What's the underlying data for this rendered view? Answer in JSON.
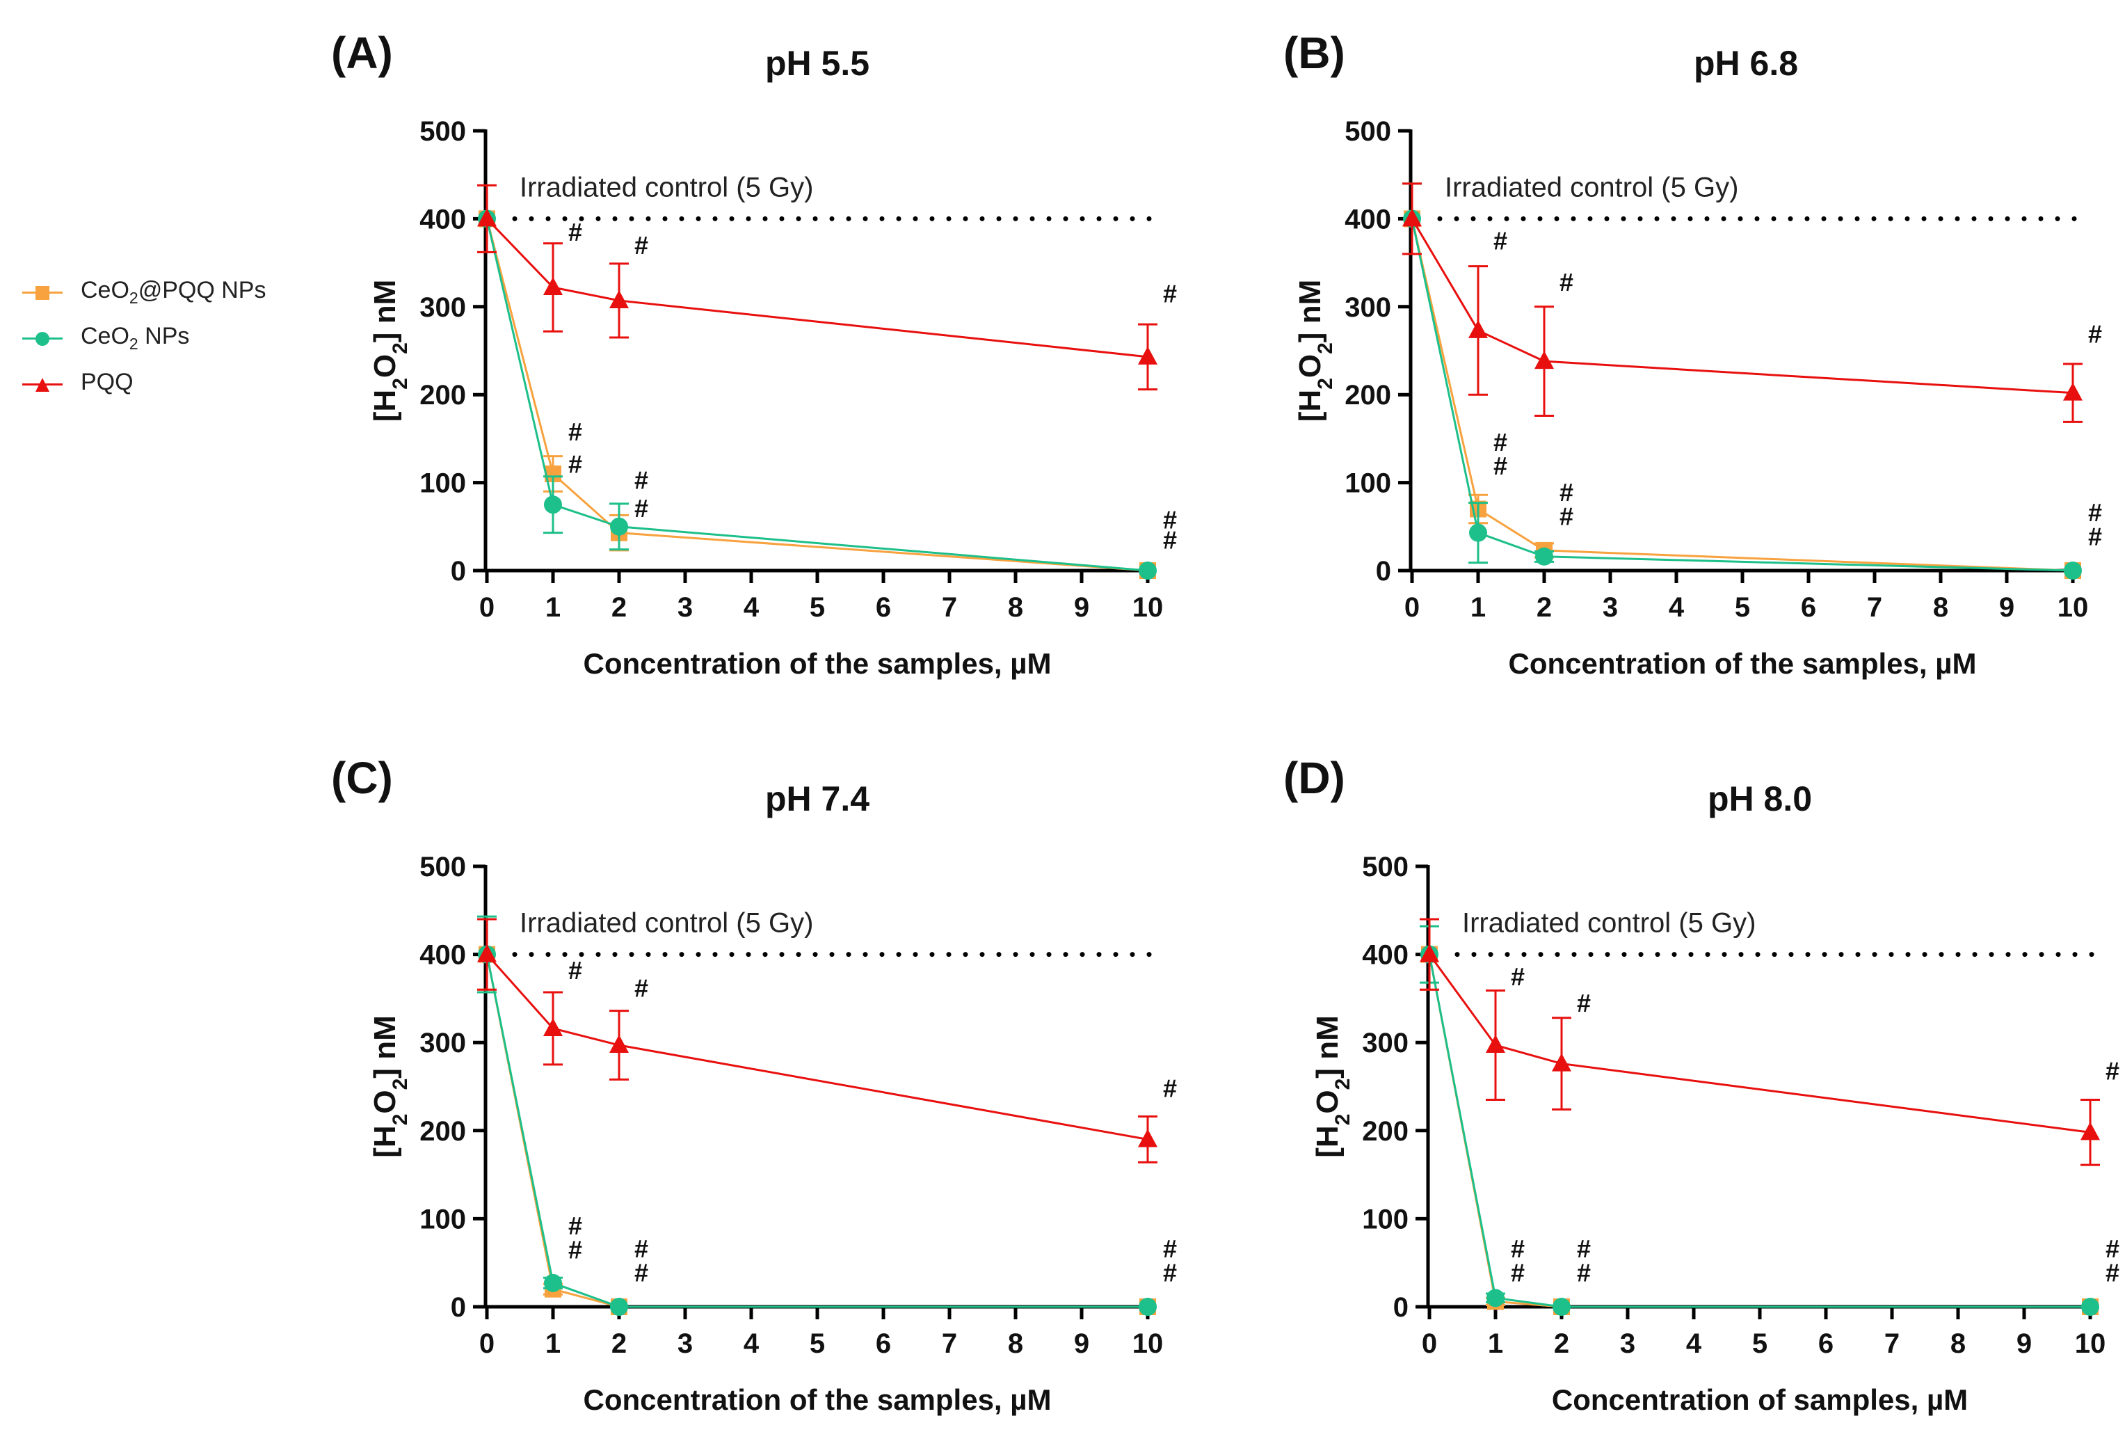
{
  "figure": {
    "legend": [
      {
        "name": "CeO2@PQQ NPs",
        "prefix": "CeO",
        "sub": "2",
        "suffix": "@PQQ NPs",
        "color": "#F7A23E",
        "marker": "square"
      },
      {
        "name": "CeO2 NPs",
        "prefix": "CeO",
        "sub": "2",
        "suffix": " NPs",
        "color": "#1DBF8A",
        "marker": "circle"
      },
      {
        "name": "PQQ",
        "prefix": "PQQ",
        "sub": "",
        "suffix": "",
        "color": "#E8100E",
        "marker": "triangle"
      }
    ],
    "significance_symbol": "#"
  },
  "chart_data": [
    {
      "type": "line",
      "panel_label": "(A)",
      "title": "pH 5.5",
      "xlabel": "Concentration of the samples, µM",
      "ylabel": "[H2O2] nM",
      "ylabel_parts": {
        "pre": "[H",
        "sub1": "2",
        "mid": "O",
        "sub2": "2",
        "post": "] nM"
      },
      "x_ticks": [
        "0",
        "1",
        "2",
        "3",
        "4",
        "5",
        "6",
        "7",
        "8",
        "9",
        "10"
      ],
      "y_ticks": [
        0,
        100,
        200,
        300,
        400,
        500
      ],
      "ylim": [
        0,
        500
      ],
      "reference_line": {
        "y": 400,
        "label": "Irradiated control (5 Gy)"
      },
      "series": [
        {
          "name": "CeO2@PQQ NPs",
          "x": [
            0,
            1,
            2,
            10
          ],
          "values": [
            400,
            110,
            43,
            0
          ],
          "errors": [
            0,
            20,
            20,
            0
          ],
          "color": "#F7A23E",
          "marker": "square"
        },
        {
          "name": "CeO2 NPs",
          "x": [
            0,
            1,
            2,
            10
          ],
          "values": [
            400,
            75,
            50,
            0
          ],
          "errors": [
            0,
            32,
            26,
            0
          ],
          "color": "#1DBF8A",
          "marker": "circle"
        },
        {
          "name": "PQQ",
          "x": [
            0,
            1,
            2,
            10
          ],
          "values": [
            400,
            322,
            307,
            243
          ],
          "errors": [
            38,
            50,
            42,
            37
          ],
          "color": "#E8100E",
          "marker": "triangle"
        }
      ],
      "annotations": [
        {
          "text": "#",
          "x": 1,
          "y": 375
        },
        {
          "text": "#",
          "x": 2,
          "y": 360
        },
        {
          "text": "#",
          "x": 10,
          "y": 305
        },
        {
          "text": "#",
          "x": 1,
          "y": 148
        },
        {
          "text": "#",
          "x": 1,
          "y": 111
        },
        {
          "text": "#",
          "x": 2,
          "y": 93
        },
        {
          "text": "#",
          "x": 2,
          "y": 61
        },
        {
          "text": "#",
          "x": 10,
          "y": 48
        },
        {
          "text": "#",
          "x": 10,
          "y": 25
        }
      ]
    },
    {
      "type": "line",
      "panel_label": "(B)",
      "title": "pH 6.8",
      "xlabel": "Concentration of the samples, µM",
      "ylabel": "[H2O2] nM",
      "ylabel_parts": {
        "pre": "[H",
        "sub1": "2",
        "mid": "O",
        "sub2": "2",
        "post": "] nM"
      },
      "x_ticks": [
        "0",
        "1",
        "2",
        "3",
        "4",
        "5",
        "6",
        "7",
        "8",
        "9",
        "10"
      ],
      "y_ticks": [
        0,
        100,
        200,
        300,
        400,
        500
      ],
      "ylim": [
        0,
        500
      ],
      "reference_line": {
        "y": 400,
        "label": "Irradiated control (5 Gy)"
      },
      "series": [
        {
          "name": "CeO2@PQQ NPs",
          "x": [
            0,
            1,
            2,
            10
          ],
          "values": [
            400,
            70,
            23,
            0
          ],
          "errors": [
            40,
            16,
            8,
            0
          ],
          "color": "#F7A23E",
          "marker": "square"
        },
        {
          "name": "CeO2 NPs",
          "x": [
            0,
            1,
            2,
            10
          ],
          "values": [
            400,
            43,
            16,
            0
          ],
          "errors": [
            40,
            34,
            6,
            0
          ],
          "color": "#1DBF8A",
          "marker": "circle"
        },
        {
          "name": "PQQ",
          "x": [
            0,
            1,
            2,
            10
          ],
          "values": [
            400,
            273,
            238,
            202
          ],
          "errors": [
            40,
            73,
            62,
            33
          ],
          "color": "#E8100E",
          "marker": "triangle"
        }
      ],
      "annotations": [
        {
          "text": "#",
          "x": 1,
          "y": 365
        },
        {
          "text": "#",
          "x": 2,
          "y": 318
        },
        {
          "text": "#",
          "x": 10,
          "y": 259
        },
        {
          "text": "#",
          "x": 1,
          "y": 136
        },
        {
          "text": "#",
          "x": 1,
          "y": 109
        },
        {
          "text": "#",
          "x": 2,
          "y": 79
        },
        {
          "text": "#",
          "x": 2,
          "y": 52
        },
        {
          "text": "#",
          "x": 10,
          "y": 56
        },
        {
          "text": "#",
          "x": 10,
          "y": 29
        }
      ]
    },
    {
      "type": "line",
      "panel_label": "(C)",
      "title": "pH 7.4",
      "xlabel": "Concentration of the samples, µM",
      "ylabel": "[H2O2] nM",
      "ylabel_parts": {
        "pre": "[H",
        "sub1": "2",
        "mid": "O",
        "sub2": "2",
        "post": "] nM"
      },
      "x_ticks": [
        "0",
        "1",
        "2",
        "3",
        "4",
        "5",
        "6",
        "7",
        "8",
        "9",
        "10"
      ],
      "y_ticks": [
        0,
        100,
        200,
        300,
        400,
        500
      ],
      "ylim": [
        0,
        500
      ],
      "reference_line": {
        "y": 400,
        "label": "Irradiated control (5 Gy)"
      },
      "series": [
        {
          "name": "CeO2@PQQ NPs",
          "x": [
            0,
            1,
            2,
            10
          ],
          "values": [
            400,
            20,
            0,
            0
          ],
          "errors": [
            40,
            6,
            0,
            0
          ],
          "color": "#F7A23E",
          "marker": "square"
        },
        {
          "name": "CeO2 NPs",
          "x": [
            0,
            1,
            2,
            10
          ],
          "values": [
            400,
            27,
            0,
            0
          ],
          "errors": [
            43,
            6,
            0,
            0
          ],
          "color": "#1DBF8A",
          "marker": "circle"
        },
        {
          "name": "PQQ",
          "x": [
            0,
            1,
            2,
            10
          ],
          "values": [
            400,
            316,
            297,
            190
          ],
          "errors": [
            40,
            41,
            39,
            26
          ],
          "color": "#E8100E",
          "marker": "triangle"
        }
      ],
      "annotations": [
        {
          "text": "#",
          "x": 1,
          "y": 372
        },
        {
          "text": "#",
          "x": 2,
          "y": 352
        },
        {
          "text": "#",
          "x": 10,
          "y": 238
        },
        {
          "text": "#",
          "x": 1,
          "y": 82
        },
        {
          "text": "#",
          "x": 1,
          "y": 55
        },
        {
          "text": "#",
          "x": 2,
          "y": 56
        },
        {
          "text": "#",
          "x": 2,
          "y": 29
        },
        {
          "text": "#",
          "x": 10,
          "y": 56
        },
        {
          "text": "#",
          "x": 10,
          "y": 29
        }
      ]
    },
    {
      "type": "line",
      "panel_label": "(D)",
      "title": "pH 8.0",
      "xlabel": "Concentration of samples, µM",
      "ylabel": "[H2O2] nM",
      "ylabel_parts": {
        "pre": "[H",
        "sub1": "2",
        "mid": "O",
        "sub2": "2",
        "post": "] nM"
      },
      "x_ticks": [
        "0",
        "1",
        "2",
        "3",
        "4",
        "5",
        "6",
        "7",
        "8",
        "9",
        "10"
      ],
      "y_ticks": [
        0,
        100,
        200,
        300,
        400,
        500
      ],
      "ylim": [
        0,
        500
      ],
      "reference_line": {
        "y": 400,
        "label": "Irradiated control (5 Gy)"
      },
      "series": [
        {
          "name": "CeO2@PQQ NPs",
          "x": [
            0,
            1,
            2,
            10
          ],
          "values": [
            400,
            6,
            0,
            0
          ],
          "errors": [
            40,
            4,
            0,
            0
          ],
          "color": "#F7A23E",
          "marker": "square"
        },
        {
          "name": "CeO2 NPs",
          "x": [
            0,
            1,
            2,
            10
          ],
          "values": [
            400,
            10,
            0,
            0
          ],
          "errors": [
            32,
            5,
            0,
            0
          ],
          "color": "#1DBF8A",
          "marker": "circle"
        },
        {
          "name": "PQQ",
          "x": [
            0,
            1,
            2,
            10
          ],
          "values": [
            400,
            297,
            276,
            198
          ],
          "errors": [
            40,
            62,
            52,
            37
          ],
          "color": "#E8100E",
          "marker": "triangle"
        }
      ],
      "annotations": [
        {
          "text": "#",
          "x": 1,
          "y": 365
        },
        {
          "text": "#",
          "x": 2,
          "y": 335
        },
        {
          "text": "#",
          "x": 10,
          "y": 258
        },
        {
          "text": "#",
          "x": 1,
          "y": 56
        },
        {
          "text": "#",
          "x": 1,
          "y": 29
        },
        {
          "text": "#",
          "x": 2,
          "y": 56
        },
        {
          "text": "#",
          "x": 2,
          "y": 29
        },
        {
          "text": "#",
          "x": 10,
          "y": 56
        },
        {
          "text": "#",
          "x": 10,
          "y": 29
        }
      ]
    }
  ]
}
